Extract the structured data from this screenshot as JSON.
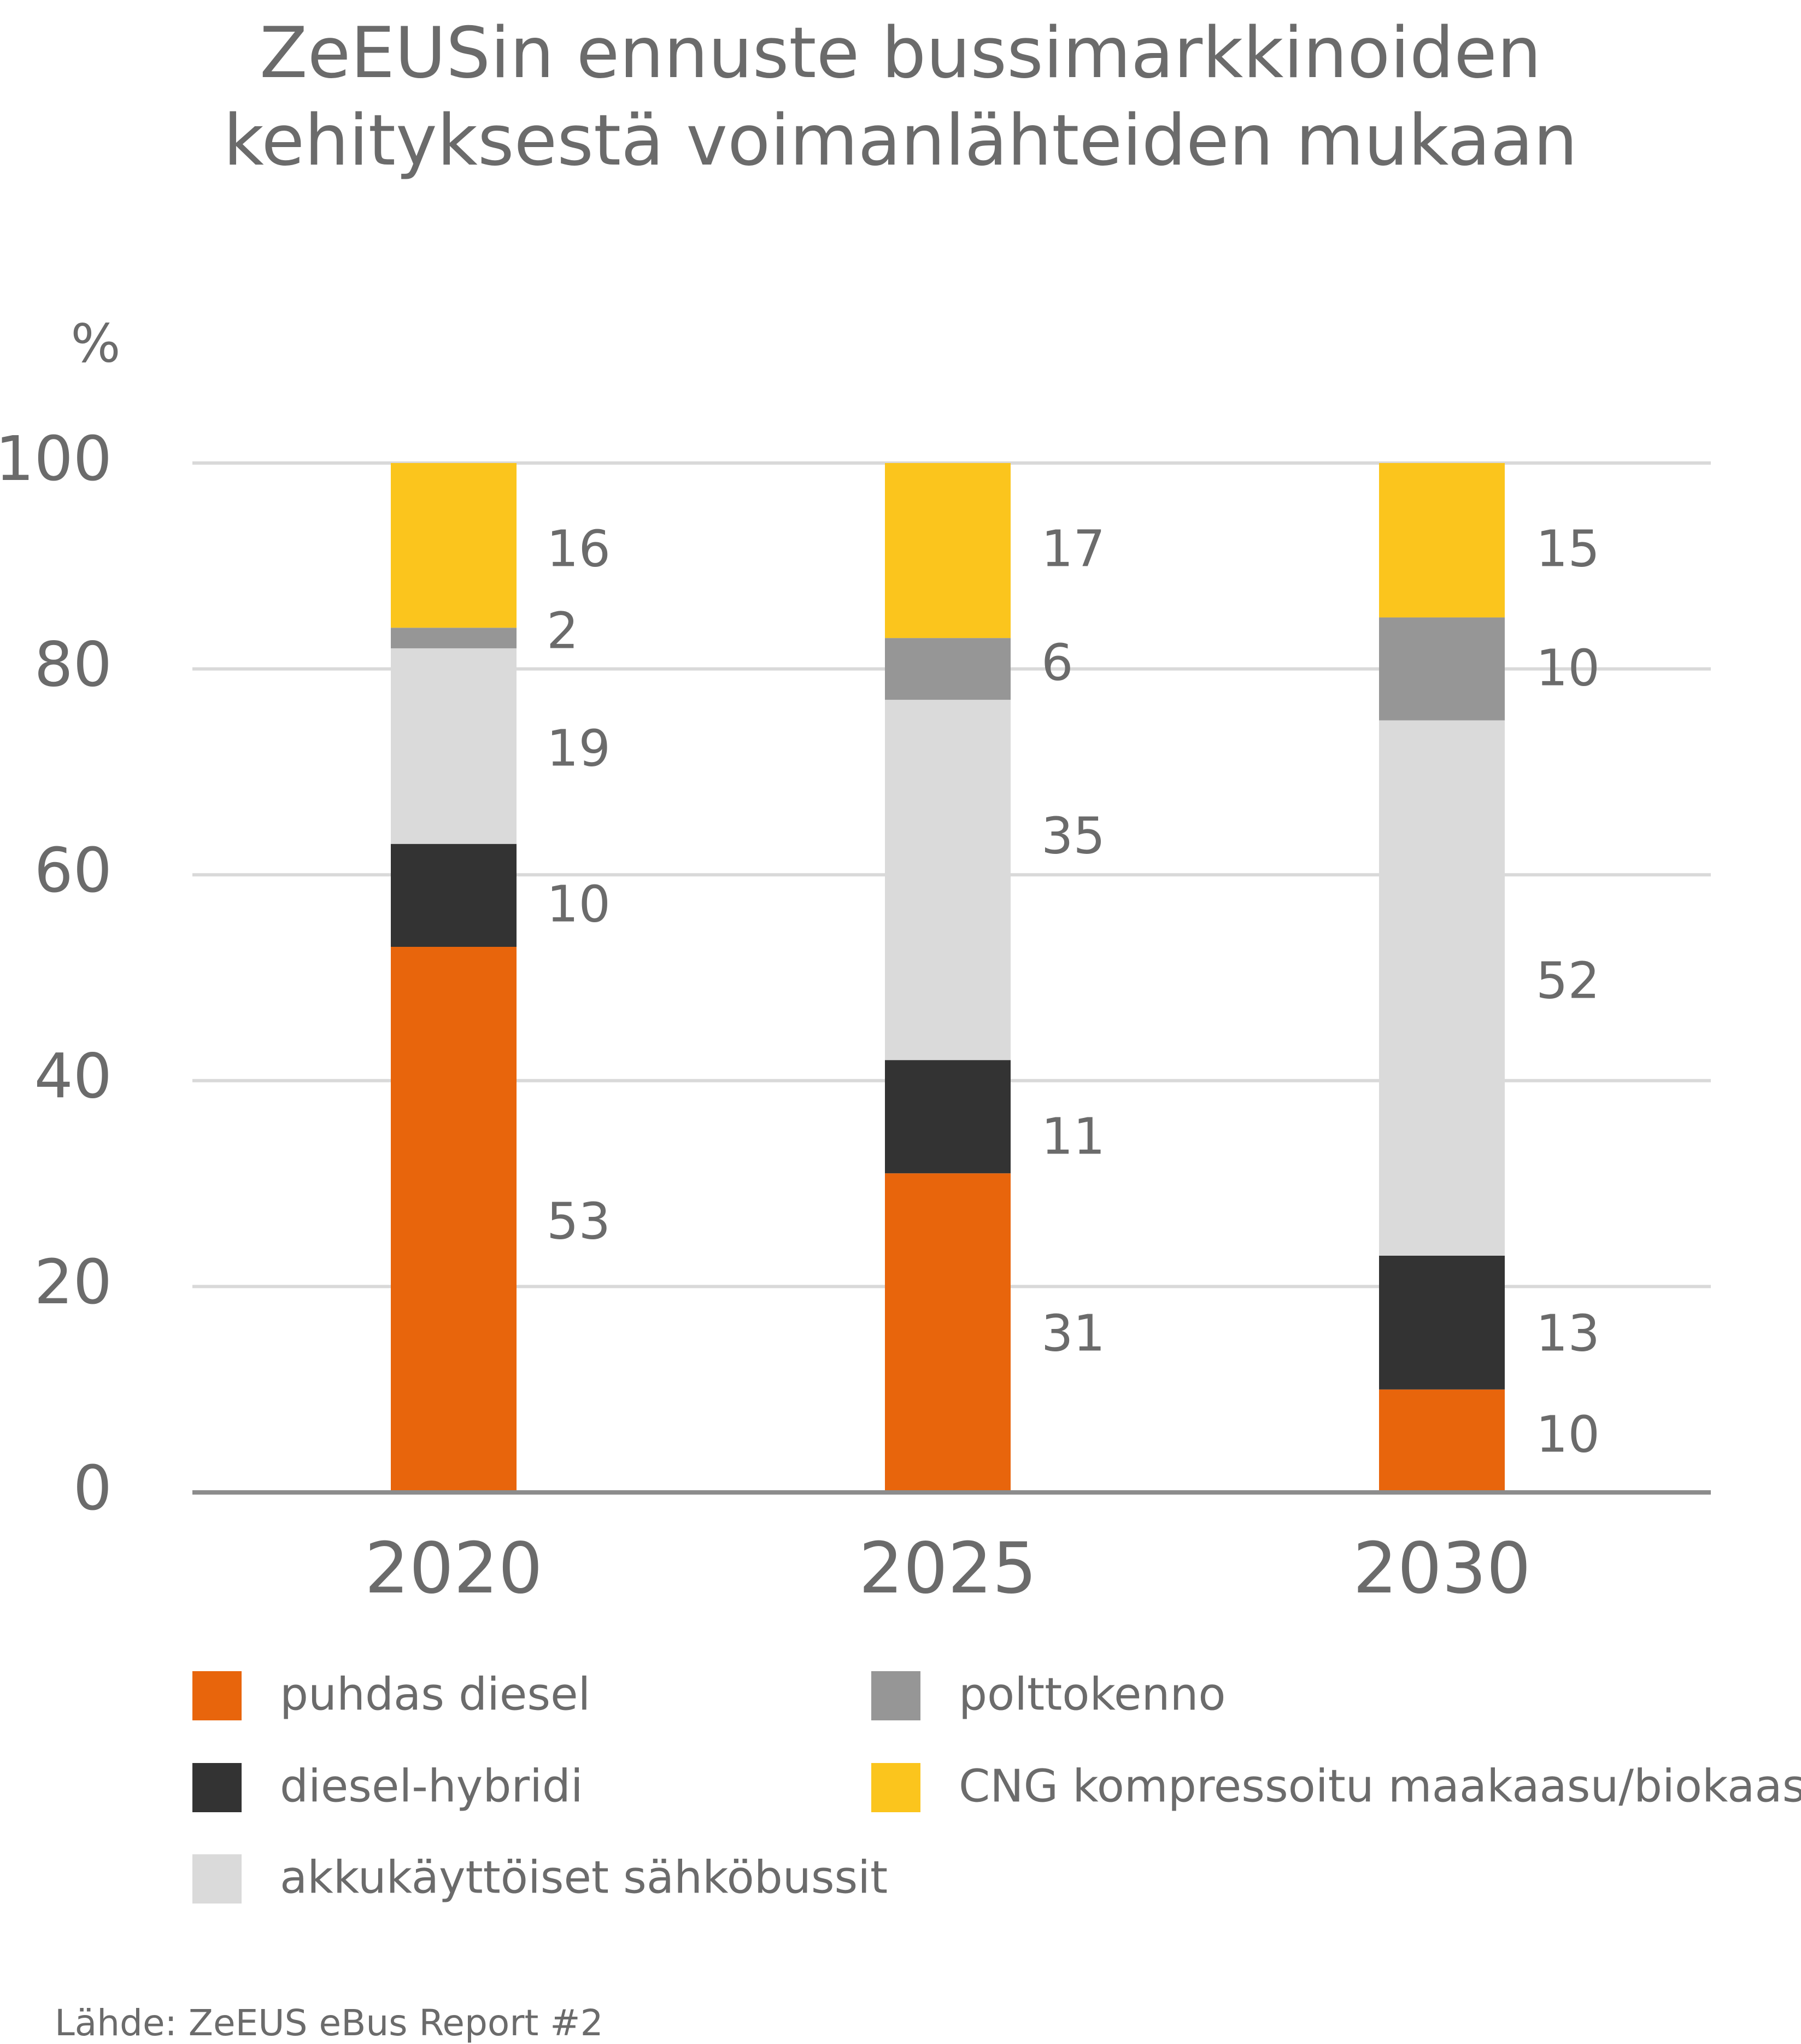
{
  "chart_data": {
    "type": "bar",
    "stacked": true,
    "title": "ZeEUSin ennuste bussimarkkinoiden kehityksestä voimanlähteiden mukaan",
    "title_lines": [
      "ZeEUSin ennuste bussimarkkinoiden",
      "kehityksestä voimanlähteiden mukaan"
    ],
    "ylabel": "%",
    "ylim": [
      0,
      100
    ],
    "yticks": [
      0,
      20,
      40,
      60,
      80,
      100
    ],
    "grid": true,
    "categories": [
      "2020",
      "2025",
      "2030"
    ],
    "series": [
      {
        "name": "puhdas diesel",
        "color": "#e8650c",
        "values": [
          53,
          31,
          10
        ]
      },
      {
        "name": "diesel-hybridi",
        "color": "#333333",
        "values": [
          10,
          11,
          13
        ]
      },
      {
        "name": "akkukäyttöiset sähköbussit",
        "color": "#dadada",
        "values": [
          19,
          35,
          52
        ]
      },
      {
        "name": "polttokenno",
        "color": "#969696",
        "values": [
          2,
          6,
          10
        ]
      },
      {
        "name": "CNG kompressoitu maakaasu/biokaasu",
        "color": "#fbc51d",
        "values": [
          16,
          17,
          15
        ]
      }
    ],
    "legend_position": "bottom",
    "source": "Lähde: ZeEUS eBus Report #2"
  }
}
